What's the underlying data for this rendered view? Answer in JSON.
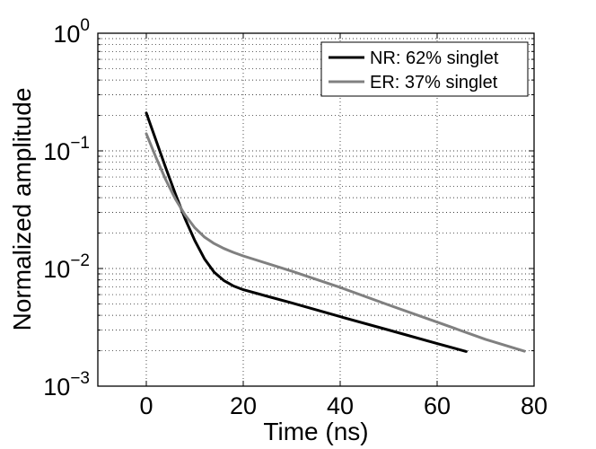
{
  "chart_data": {
    "type": "line",
    "title": "",
    "xlabel": "Time (ns)",
    "ylabel": "Normalized amplitude",
    "xlim": [
      -10,
      80
    ],
    "ylim": [
      0.001,
      1
    ],
    "yscale": "log",
    "grid": true,
    "legend_position": "top-right",
    "x_ticks": [
      {
        "value": 0,
        "label": "0"
      },
      {
        "value": 20,
        "label": "20"
      },
      {
        "value": 40,
        "label": "40"
      },
      {
        "value": 60,
        "label": "60"
      },
      {
        "value": 80,
        "label": "80"
      }
    ],
    "y_ticks": [
      {
        "value": 1,
        "base": "10",
        "exp": "0"
      },
      {
        "value": 0.1,
        "base": "10",
        "exp": "−1"
      },
      {
        "value": 0.01,
        "base": "10",
        "exp": "−2"
      },
      {
        "value": 0.001,
        "base": "10",
        "exp": "−3"
      }
    ],
    "series": [
      {
        "name": "NR: 62% singlet",
        "color": "#000000",
        "x": [
          0,
          2,
          4,
          6,
          8,
          10,
          12,
          14,
          16,
          18,
          20,
          25,
          30,
          40,
          50,
          60,
          66
        ],
        "y": [
          0.21,
          0.123,
          0.072,
          0.043,
          0.0265,
          0.0173,
          0.0121,
          0.0093,
          0.0079,
          0.0071,
          0.0066,
          0.0058,
          0.0051,
          0.0039,
          0.003,
          0.0023,
          0.00197
        ]
      },
      {
        "name": "ER: 37% singlet",
        "color": "#808080",
        "x": [
          0,
          2,
          4,
          6,
          8,
          10,
          12,
          14,
          16,
          18,
          20,
          30,
          40,
          50,
          60,
          70,
          78
        ],
        "y": [
          0.14,
          0.088,
          0.057,
          0.039,
          0.0285,
          0.0222,
          0.0185,
          0.0163,
          0.0148,
          0.0137,
          0.0128,
          0.0095,
          0.0069,
          0.0049,
          0.0035,
          0.0025,
          0.00198
        ]
      }
    ]
  }
}
